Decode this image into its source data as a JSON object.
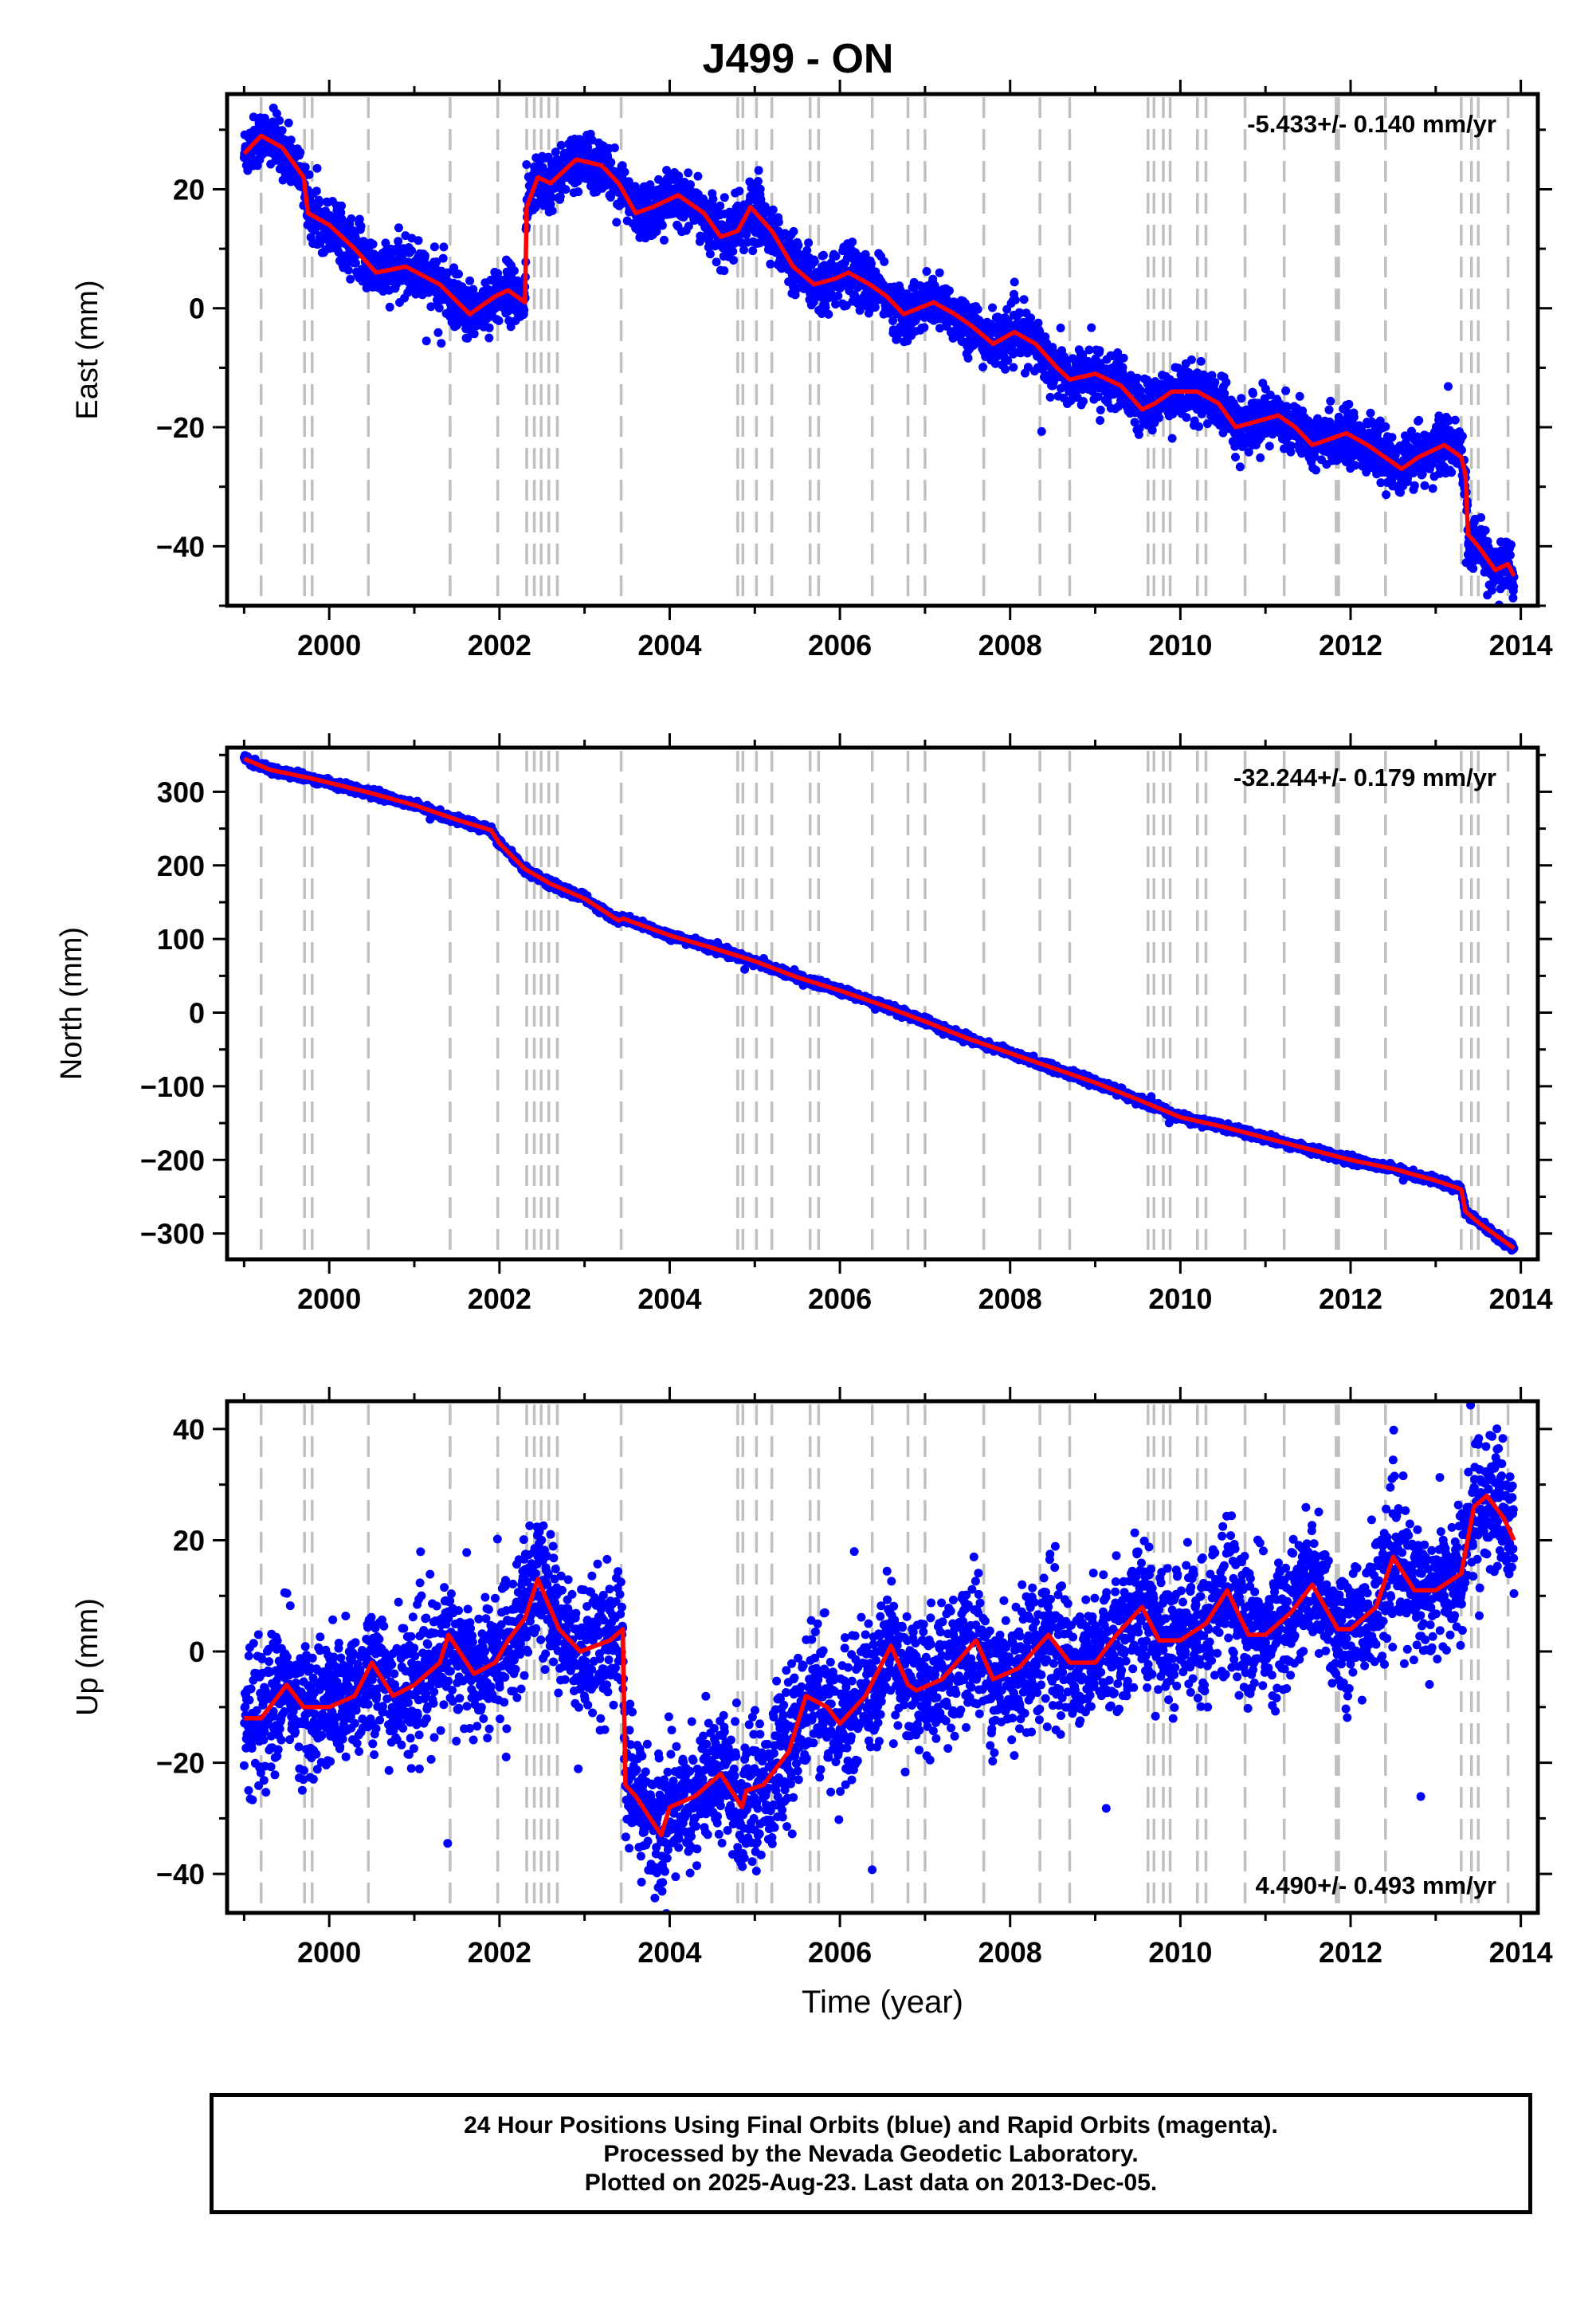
{
  "title": "J499 - ON",
  "colors": {
    "final": "#0000ff",
    "model": "#ff0000",
    "event_line": "#c0c0c0",
    "axis": "#000000"
  },
  "chart_data": [
    {
      "type": "scatter",
      "ylabel": "East (mm)",
      "xlabel": "",
      "xlim": [
        1998.8,
        2014.2
      ],
      "ylim": [
        -50,
        36
      ],
      "xticks": [
        2000,
        2002,
        2004,
        2006,
        2008,
        2010,
        2012,
        2014
      ],
      "yticks": [
        -40,
        -20,
        0,
        20
      ],
      "rate_label": "-5.433+/- 0.140 mm/yr",
      "rate_position": "top-right",
      "noise_mm": 2.2,
      "series": [
        {
          "name": "Final Orbits",
          "color": "#0000ff",
          "model": [
            [
              1999.0,
              26
            ],
            [
              1999.2,
              29
            ],
            [
              1999.45,
              27
            ],
            [
              1999.7,
              22
            ],
            [
              1999.75,
              16
            ],
            [
              2000.0,
              14
            ],
            [
              2000.3,
              10
            ],
            [
              2000.55,
              6
            ],
            [
              2000.9,
              7
            ],
            [
              2001.3,
              4
            ],
            [
              2001.65,
              -1
            ],
            [
              2001.95,
              2
            ],
            [
              2002.1,
              3
            ],
            [
              2002.3,
              1
            ],
            [
              2002.32,
              17
            ],
            [
              2002.45,
              22
            ],
            [
              2002.6,
              21
            ],
            [
              2002.9,
              25
            ],
            [
              2003.2,
              24
            ],
            [
              2003.4,
              21
            ],
            [
              2003.6,
              16
            ],
            [
              2003.8,
              17
            ],
            [
              2004.1,
              19
            ],
            [
              2004.4,
              16
            ],
            [
              2004.6,
              12
            ],
            [
              2004.8,
              13
            ],
            [
              2004.95,
              17
            ],
            [
              2005.2,
              13
            ],
            [
              2005.45,
              7
            ],
            [
              2005.7,
              4
            ],
            [
              2005.95,
              5
            ],
            [
              2006.1,
              6
            ],
            [
              2006.35,
              4
            ],
            [
              2006.55,
              2
            ],
            [
              2006.75,
              -1
            ],
            [
              2007.1,
              1
            ],
            [
              2007.35,
              -1
            ],
            [
              2007.55,
              -3
            ],
            [
              2007.8,
              -6
            ],
            [
              2008.05,
              -4
            ],
            [
              2008.3,
              -6
            ],
            [
              2008.55,
              -10
            ],
            [
              2008.7,
              -12
            ],
            [
              2009.0,
              -11
            ],
            [
              2009.3,
              -13
            ],
            [
              2009.55,
              -17
            ],
            [
              2009.7,
              -16
            ],
            [
              2009.9,
              -14
            ],
            [
              2010.2,
              -14
            ],
            [
              2010.45,
              -16
            ],
            [
              2010.65,
              -20
            ],
            [
              2010.9,
              -19
            ],
            [
              2011.15,
              -18
            ],
            [
              2011.35,
              -20
            ],
            [
              2011.55,
              -23
            ],
            [
              2011.75,
              -22
            ],
            [
              2011.95,
              -21
            ],
            [
              2012.2,
              -23
            ],
            [
              2012.4,
              -25
            ],
            [
              2012.6,
              -27
            ],
            [
              2012.8,
              -25
            ],
            [
              2013.1,
              -23
            ],
            [
              2013.3,
              -25
            ],
            [
              2013.35,
              -28
            ],
            [
              2013.38,
              -38
            ],
            [
              2013.5,
              -40
            ],
            [
              2013.7,
              -44
            ],
            [
              2013.85,
              -43
            ],
            [
              2013.92,
              -45
            ]
          ]
        }
      ]
    },
    {
      "type": "scatter",
      "ylabel": "North (mm)",
      "xlabel": "",
      "xlim": [
        1998.8,
        2014.2
      ],
      "ylim": [
        -335,
        360
      ],
      "xticks": [
        2000,
        2002,
        2004,
        2006,
        2008,
        2010,
        2012,
        2014
      ],
      "yticks": [
        -300,
        -200,
        -100,
        0,
        100,
        200,
        300
      ],
      "rate_label": "-32.244+/- 0.179 mm/yr",
      "rate_position": "top-right",
      "noise_mm": 2.5,
      "series": [
        {
          "name": "Final Orbits",
          "color": "#0000ff",
          "model": [
            [
              1999.0,
              345
            ],
            [
              1999.3,
              330
            ],
            [
              1999.8,
              318
            ],
            [
              2000.5,
              298
            ],
            [
              2001.0,
              282
            ],
            [
              2001.5,
              262
            ],
            [
              2001.9,
              248
            ],
            [
              2002.0,
              230
            ],
            [
              2002.3,
              195
            ],
            [
              2002.6,
              175
            ],
            [
              2003.0,
              155
            ],
            [
              2003.4,
              125
            ],
            [
              2003.45,
              128
            ],
            [
              2004.0,
              105
            ],
            [
              2004.5,
              88
            ],
            [
              2005.0,
              70
            ],
            [
              2005.5,
              48
            ],
            [
              2006.0,
              30
            ],
            [
              2006.5,
              10
            ],
            [
              2007.0,
              -12
            ],
            [
              2007.5,
              -35
            ],
            [
              2008.0,
              -55
            ],
            [
              2008.5,
              -75
            ],
            [
              2009.0,
              -95
            ],
            [
              2009.5,
              -118
            ],
            [
              2010.0,
              -142
            ],
            [
              2010.5,
              -155
            ],
            [
              2011.0,
              -170
            ],
            [
              2011.5,
              -185
            ],
            [
              2012.0,
              -200
            ],
            [
              2012.5,
              -212
            ],
            [
              2013.0,
              -228
            ],
            [
              2013.3,
              -240
            ],
            [
              2013.35,
              -270
            ],
            [
              2013.5,
              -285
            ],
            [
              2013.92,
              -320
            ]
          ]
        }
      ]
    },
    {
      "type": "scatter",
      "ylabel": "Up (mm)",
      "xlabel": "Time (year)",
      "xlim": [
        1998.8,
        2014.2
      ],
      "ylim": [
        -47,
        45
      ],
      "xticks": [
        2000,
        2002,
        2004,
        2006,
        2008,
        2010,
        2012,
        2014
      ],
      "yticks": [
        -40,
        -20,
        0,
        20,
        40
      ],
      "rate_label": "4.490+/- 0.493 mm/yr",
      "rate_position": "bottom-right",
      "noise_mm": 6,
      "series": [
        {
          "name": "Final Orbits",
          "color": "#0000ff",
          "model": [
            [
              1999.0,
              -12
            ],
            [
              1999.2,
              -12
            ],
            [
              1999.5,
              -6
            ],
            [
              1999.7,
              -10
            ],
            [
              1999.75,
              -10
            ],
            [
              2000.0,
              -10
            ],
            [
              2000.3,
              -8
            ],
            [
              2000.5,
              -2
            ],
            [
              2000.75,
              -8
            ],
            [
              2001.0,
              -6
            ],
            [
              2001.3,
              -2
            ],
            [
              2001.4,
              3
            ],
            [
              2001.7,
              -4
            ],
            [
              2001.95,
              -2
            ],
            [
              2002.1,
              2
            ],
            [
              2002.3,
              6
            ],
            [
              2002.45,
              13
            ],
            [
              2002.7,
              4
            ],
            [
              2002.95,
              0
            ],
            [
              2003.3,
              2
            ],
            [
              2003.45,
              4
            ],
            [
              2003.48,
              -24
            ],
            [
              2003.6,
              -26
            ],
            [
              2003.9,
              -33
            ],
            [
              2004.0,
              -28
            ],
            [
              2004.3,
              -26
            ],
            [
              2004.6,
              -22
            ],
            [
              2004.85,
              -28
            ],
            [
              2004.9,
              -25
            ],
            [
              2005.1,
              -24
            ],
            [
              2005.4,
              -18
            ],
            [
              2005.6,
              -8
            ],
            [
              2005.85,
              -10
            ],
            [
              2006.0,
              -13
            ],
            [
              2006.3,
              -8
            ],
            [
              2006.6,
              1
            ],
            [
              2006.8,
              -6
            ],
            [
              2006.9,
              -7
            ],
            [
              2007.2,
              -5
            ],
            [
              2007.6,
              2
            ],
            [
              2007.8,
              -5
            ],
            [
              2008.1,
              -3
            ],
            [
              2008.45,
              3
            ],
            [
              2008.7,
              -2
            ],
            [
              2009.0,
              -2
            ],
            [
              2009.25,
              3
            ],
            [
              2009.55,
              8
            ],
            [
              2009.75,
              2
            ],
            [
              2010.0,
              2
            ],
            [
              2010.3,
              5
            ],
            [
              2010.55,
              11
            ],
            [
              2010.8,
              3
            ],
            [
              2011.0,
              3
            ],
            [
              2011.3,
              7
            ],
            [
              2011.55,
              12
            ],
            [
              2011.85,
              4
            ],
            [
              2012.0,
              4
            ],
            [
              2012.3,
              8
            ],
            [
              2012.5,
              17
            ],
            [
              2012.75,
              11
            ],
            [
              2013.0,
              11
            ],
            [
              2013.3,
              14
            ],
            [
              2013.45,
              26
            ],
            [
              2013.6,
              28
            ],
            [
              2013.8,
              24
            ],
            [
              2013.92,
              20
            ]
          ]
        }
      ]
    }
  ],
  "event_years": [
    1999.2,
    1999.71,
    1999.8,
    2000.46,
    2001.42,
    2001.98,
    2002.32,
    2002.41,
    2002.49,
    2002.58,
    2002.68,
    2003.43,
    2004.8,
    2004.86,
    2005.02,
    2005.2,
    2005.65,
    2005.75,
    2006.38,
    2006.8,
    2007.0,
    2007.69,
    2008.35,
    2008.7,
    2009.62,
    2009.69,
    2009.8,
    2009.88,
    2010.2,
    2010.3,
    2010.76,
    2011.22,
    2011.83,
    2011.86,
    2012.41,
    2013.3,
    2013.42,
    2013.5,
    2013.85
  ],
  "footer": {
    "line1": "24 Hour Positions Using Final Orbits (blue) and Rapid Orbits (magenta).",
    "line2": "Processed by the Nevada Geodetic Laboratory.",
    "line3": "Plotted on 2025-Aug-23. Last data on 2013-Dec-05."
  }
}
